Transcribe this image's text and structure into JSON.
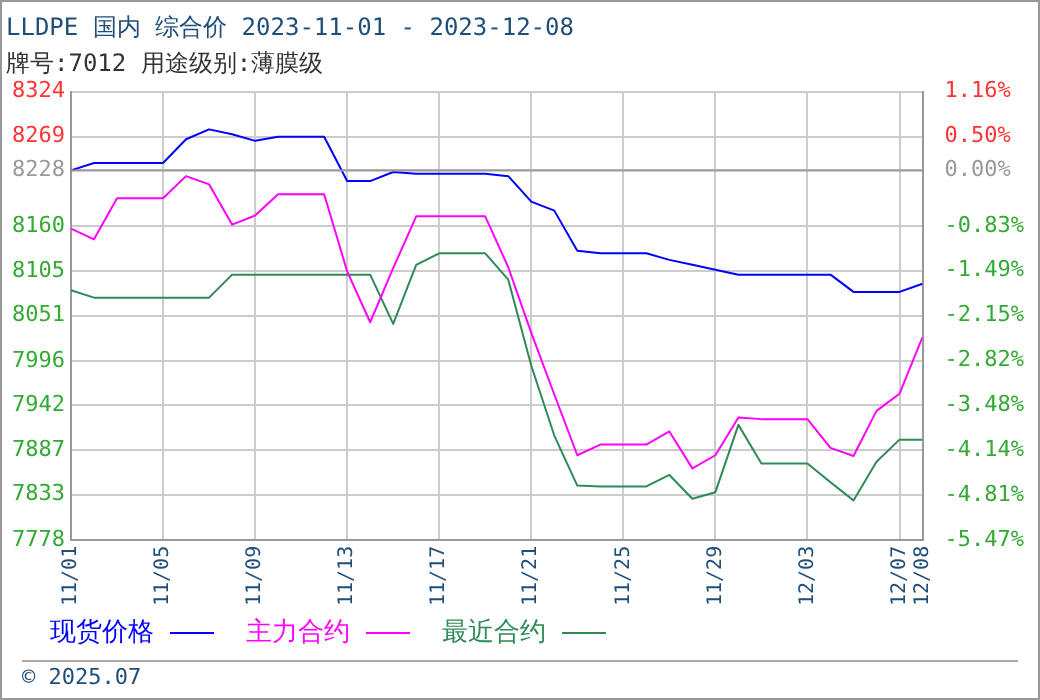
{
  "chart_data": {
    "type": "line",
    "title": "LLDPE 国内 综合价 2023-11-01 - 2023-12-08",
    "subtitle": "牌号:7012 用途级别:薄膜级",
    "x": [
      "2023-11-01",
      "2023-11-02",
      "2023-11-03",
      "2023-11-04",
      "2023-11-05",
      "2023-11-06",
      "2023-11-07",
      "2023-11-08",
      "2023-11-09",
      "2023-11-10",
      "2023-11-11",
      "2023-11-12",
      "2023-11-13",
      "2023-11-14",
      "2023-11-15",
      "2023-11-16",
      "2023-11-17",
      "2023-11-18",
      "2023-11-19",
      "2023-11-20",
      "2023-11-21",
      "2023-11-22",
      "2023-11-23",
      "2023-11-24",
      "2023-11-25",
      "2023-11-26",
      "2023-11-27",
      "2023-11-28",
      "2023-11-29",
      "2023-11-30",
      "2023-12-01",
      "2023-12-02",
      "2023-12-03",
      "2023-12-04",
      "2023-12-05",
      "2023-12-06",
      "2023-12-07",
      "2023-12-08"
    ],
    "series": [
      {
        "name": "现货价格",
        "color": "#0000ff",
        "values": [
          8228,
          8237,
          8237,
          8237,
          8237,
          8266,
          8278,
          8272,
          8264,
          8269,
          8269,
          8269,
          8215,
          8215,
          8226,
          8224,
          8224,
          8224,
          8224,
          8221,
          8190,
          8179,
          8130,
          8127,
          8127,
          8127,
          8119,
          8113,
          8107,
          8101,
          8101,
          8101,
          8101,
          8101,
          8080,
          8080,
          8080,
          8090
        ]
      },
      {
        "name": "主力合约",
        "color": "#ff00ff",
        "values": [
          8157,
          8144,
          8194,
          8194,
          8194,
          8221,
          8211,
          8162,
          8173,
          8199,
          8199,
          8199,
          8105,
          8043,
          8109,
          8172,
          8172,
          8172,
          8172,
          8110,
          8030,
          7955,
          7881,
          7894,
          7894,
          7894,
          7910,
          7865,
          7881,
          7927,
          7925,
          7925,
          7925,
          7890,
          7880,
          7935,
          7956,
          8025
        ]
      },
      {
        "name": "最近合约",
        "color": "#2e8b57",
        "values": [
          8082,
          8073,
          8073,
          8073,
          8073,
          8073,
          8073,
          8101,
          8101,
          8101,
          8101,
          8101,
          8101,
          8101,
          8041,
          8113,
          8127,
          8127,
          8127,
          8095,
          7990,
          7905,
          7844,
          7843,
          7843,
          7843,
          7857,
          7828,
          7836,
          7918,
          7871,
          7871,
          7871,
          7848,
          7826,
          7873,
          7900,
          7900
        ]
      }
    ],
    "xlim": [
      "2023-11-01",
      "2023-12-08"
    ],
    "xticks": [
      {
        "value": "2023-11-01",
        "label": "11/01"
      },
      {
        "value": "2023-11-05",
        "label": "11/05"
      },
      {
        "value": "2023-11-09",
        "label": "11/09"
      },
      {
        "value": "2023-11-13",
        "label": "11/13"
      },
      {
        "value": "2023-11-17",
        "label": "11/17"
      },
      {
        "value": "2023-11-21",
        "label": "11/21"
      },
      {
        "value": "2023-11-25",
        "label": "11/25"
      },
      {
        "value": "2023-11-29",
        "label": "11/29"
      },
      {
        "value": "2023-12-03",
        "label": "12/03"
      },
      {
        "value": "2023-12-07",
        "label": "12/07"
      },
      {
        "value": "2023-12-08",
        "label": "12/08"
      }
    ],
    "ylim": [
      7778,
      8324
    ],
    "yticks": [
      7778,
      7833,
      7887,
      7942,
      7996,
      8051,
      8105,
      8160,
      8228,
      8269,
      8324
    ],
    "y2lim": [
      -5.47,
      1.16
    ],
    "y2ticks": [
      {
        "value": -5.47,
        "label": "-5.47%"
      },
      {
        "value": -4.81,
        "label": "-4.81%"
      },
      {
        "value": -4.14,
        "label": "-4.14%"
      },
      {
        "value": -3.48,
        "label": "-3.48%"
      },
      {
        "value": -2.82,
        "label": "-2.82%"
      },
      {
        "value": -2.15,
        "label": "-2.15%"
      },
      {
        "value": -1.49,
        "label": "-1.49%"
      },
      {
        "value": -0.83,
        "label": "-0.83%"
      },
      {
        "value": 0,
        "label": "0.00%"
      },
      {
        "value": 0.5,
        "label": "0.50%"
      },
      {
        "value": 1.16,
        "label": "1.16%"
      }
    ],
    "ref_lines": [
      {
        "axis": "y",
        "value": 8228,
        "color": "#999999"
      }
    ],
    "grid": true,
    "legend": "bottom",
    "marker": "none",
    "line_style": "solid",
    "annotations": [
      "© 2025.07"
    ]
  }
}
